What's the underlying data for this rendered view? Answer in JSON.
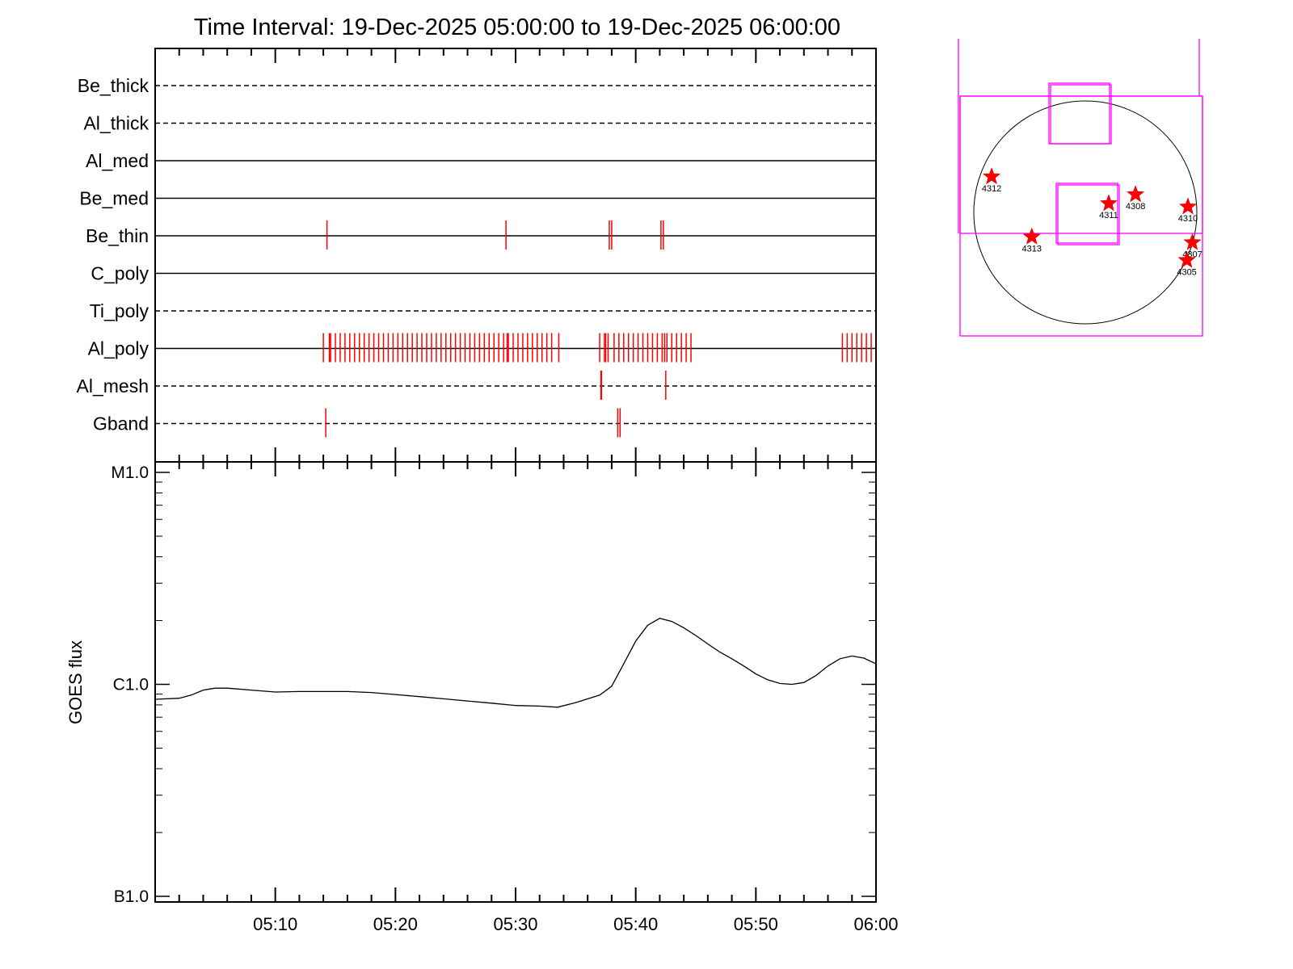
{
  "chart_data": {
    "type": "line",
    "title": "Time Interval: 19-Dec-2025 05:00:00 to 19-Dec-2025 06:00:00",
    "time_range": [
      "05:00",
      "06:00"
    ],
    "x_tick_labels": [
      "05:10",
      "05:20",
      "05:30",
      "05:40",
      "05:50",
      "06:00"
    ],
    "filters": [
      {
        "name": "Be_thick",
        "style": "dashed",
        "events": []
      },
      {
        "name": "Al_thick",
        "style": "dashed",
        "events": []
      },
      {
        "name": "Al_med",
        "style": "solid",
        "events": []
      },
      {
        "name": "Be_med",
        "style": "solid",
        "events": []
      },
      {
        "name": "Be_thin",
        "style": "solid",
        "events": [
          14.3,
          29.2,
          37.8,
          38.0,
          42.1,
          42.3
        ]
      },
      {
        "name": "C_poly",
        "style": "solid",
        "events": []
      },
      {
        "name": "Ti_poly",
        "style": "dashed",
        "events": []
      },
      {
        "name": "Al_poly",
        "style": "solid",
        "events": [
          14.0,
          14.5,
          14.6,
          15.0,
          15.4,
          15.8,
          16.2,
          16.6,
          17.0,
          17.4,
          17.8,
          18.2,
          18.6,
          19.0,
          19.4,
          19.8,
          20.2,
          20.6,
          21.0,
          21.4,
          21.8,
          22.2,
          22.6,
          23.0,
          23.4,
          23.8,
          24.2,
          24.6,
          25.0,
          25.4,
          25.8,
          26.2,
          26.6,
          27.0,
          27.4,
          27.8,
          28.2,
          28.6,
          29.0,
          29.3,
          29.4,
          29.8,
          30.2,
          30.6,
          31.0,
          31.4,
          31.8,
          32.2,
          32.6,
          33.0,
          33.6,
          37.0,
          37.4,
          37.5,
          37.7,
          38.2,
          38.6,
          39.0,
          39.4,
          39.8,
          40.2,
          40.6,
          41.0,
          41.4,
          41.8,
          42.2,
          42.4,
          42.6,
          43.0,
          43.4,
          43.8,
          44.2,
          44.6,
          57.2,
          57.6,
          58.0,
          58.4,
          58.8,
          59.2,
          59.6
        ]
      },
      {
        "name": "Al_mesh",
        "style": "dashed",
        "events": [
          37.1,
          37.15,
          42.5
        ]
      },
      {
        "name": "Gband",
        "style": "dashed",
        "events": [
          14.2,
          38.5,
          38.7
        ]
      }
    ],
    "flux": {
      "ylabel": "GOES flux",
      "y_tick_labels": [
        "M1.0",
        "C1.0",
        "B1.0"
      ],
      "y_scale": "log",
      "x_minutes": [
        0,
        2,
        3,
        4,
        5,
        6,
        8,
        10,
        12,
        14,
        16,
        18,
        20,
        22,
        24,
        26,
        28,
        30,
        32,
        33.5,
        35,
        37,
        38,
        39,
        40,
        41,
        42,
        43,
        44,
        45,
        46,
        47,
        48,
        49,
        50,
        51,
        52,
        53,
        54,
        55,
        56,
        57,
        58,
        59,
        60
      ],
      "y_flux": [
        8.5e-07,
        8.6e-07,
        8.9e-07,
        9.4e-07,
        9.6e-07,
        9.6e-07,
        9.4e-07,
        9.2e-07,
        9.25e-07,
        9.25e-07,
        9.25e-07,
        9.15e-07,
        8.95e-07,
        8.75e-07,
        8.55e-07,
        8.35e-07,
        8.15e-07,
        7.95e-07,
        7.9e-07,
        7.8e-07,
        8.2e-07,
        8.9e-07,
        9.8e-07,
        1.25e-06,
        1.6e-06,
        1.9e-06,
        2.05e-06,
        1.98e-06,
        1.85e-06,
        1.7e-06,
        1.55e-06,
        1.42e-06,
        1.32e-06,
        1.22e-06,
        1.12e-06,
        1.05e-06,
        1.01e-06,
        1e-06,
        1.02e-06,
        1.1e-06,
        1.22e-06,
        1.32e-06,
        1.36e-06,
        1.33e-06,
        1.25e-06
      ]
    },
    "solar_disk": {
      "active_regions": [
        {
          "label": "4312",
          "x": -0.84,
          "y": 0.32
        },
        {
          "label": "4313",
          "x": -0.48,
          "y": -0.22
        },
        {
          "label": "4311",
          "x": 0.21,
          "y": 0.08
        },
        {
          "label": "4308",
          "x": 0.45,
          "y": 0.16
        },
        {
          "label": "4310",
          "x": 0.92,
          "y": 0.05
        },
        {
          "label": "4307",
          "x": 0.96,
          "y": -0.27
        },
        {
          "label": "4305",
          "x": 0.91,
          "y": -0.43
        }
      ]
    },
    "colors": {
      "events": "#ff0000",
      "fov": "#ff00ff",
      "axes": "#000000"
    }
  }
}
